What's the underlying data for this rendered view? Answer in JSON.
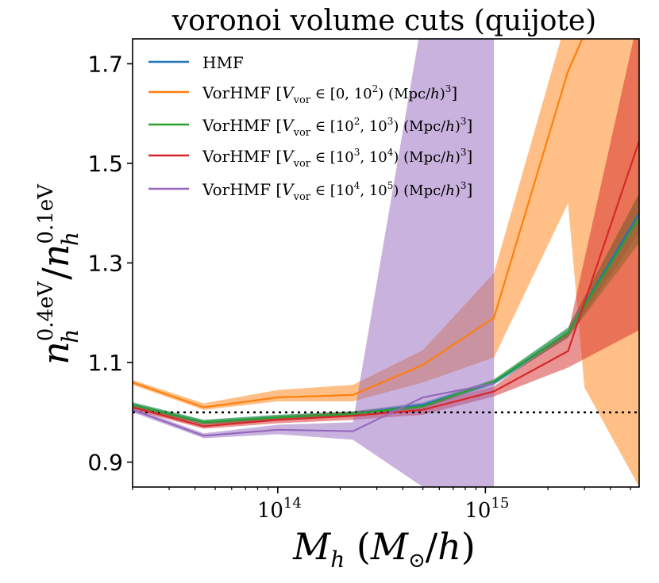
{
  "chart_data": {
    "type": "line",
    "title": "voronoi volume cuts (quijote)",
    "xlabel": "M_h (M_⊙/h)",
    "ylabel": "n_h^0.4eV / n_h^0.1eV",
    "xscale": "log",
    "xlim": [
      20000000000000.0,
      5500000000000000.0
    ],
    "ylim": [
      0.85,
      1.75
    ],
    "yticks": [
      "0.9",
      "1.1",
      "1.3",
      "1.5",
      "1.7"
    ],
    "xticks": [
      {
        "value": 100000000000000.0,
        "base": "10",
        "exp": "14"
      },
      {
        "value": 1000000000000000.0,
        "base": "10",
        "exp": "15"
      }
    ],
    "reference_line": {
      "y": 1.0,
      "style": "dotted",
      "color": "#000000"
    },
    "legend_position": "top-left",
    "series": [
      {
        "name": "HMF",
        "legend_main": "HMF",
        "legend_rest": "",
        "color": "#1f77b4",
        "x": [
          20000000000000.0,
          44000000000000.0,
          100000000000000.0,
          230000000000000.0,
          500000000000000.0,
          1100000000000000.0,
          2500000000000000.0,
          5500000000000000.0
        ],
        "y": [
          1.015,
          0.98,
          0.99,
          0.997,
          1.015,
          1.06,
          1.16,
          1.4
        ],
        "band_lo": [
          1.01,
          0.975,
          0.985,
          0.992,
          1.01,
          1.055,
          1.15,
          1.36
        ],
        "band_hi": [
          1.02,
          0.985,
          0.995,
          1.002,
          1.02,
          1.065,
          1.17,
          1.44
        ]
      },
      {
        "name": "VorHMF [V_vor ∈ [0, 10^2) (Mpc/h)^3]",
        "legend_main": "VorHMF [",
        "legend_rest": "V_vor ∈ [0, 10^2) (Mpc/h)^3]",
        "color": "#ff7f0e",
        "x": [
          20000000000000.0,
          44000000000000.0,
          100000000000000.0,
          230000000000000.0,
          500000000000000.0,
          1100000000000000.0,
          2500000000000000.0,
          3000000000000000.0,
          5500000000000000.0
        ],
        "y": [
          1.06,
          1.01,
          1.03,
          1.035,
          1.095,
          1.19,
          1.685,
          1.76,
          1.8
        ],
        "band_lo": [
          1.055,
          1.005,
          1.022,
          1.022,
          1.06,
          1.11,
          1.42,
          1.05,
          0.85
        ],
        "band_hi": [
          1.065,
          1.018,
          1.045,
          1.055,
          1.125,
          1.28,
          1.8,
          1.8,
          1.8
        ]
      },
      {
        "name": "VorHMF [V_vor ∈ [10^2, 10^3) (Mpc/h)^3]",
        "legend_main": "VorHMF [",
        "legend_rest": "V_vor ∈ [10^2, 10^3) (Mpc/h)^3]",
        "color": "#2ca02c",
        "x": [
          20000000000000.0,
          44000000000000.0,
          100000000000000.0,
          230000000000000.0,
          500000000000000.0,
          1100000000000000.0,
          2500000000000000.0,
          5500000000000000.0
        ],
        "y": [
          1.015,
          0.98,
          0.99,
          0.997,
          1.012,
          1.062,
          1.16,
          1.39
        ],
        "band_lo": [
          1.01,
          0.975,
          0.985,
          0.992,
          1.007,
          1.057,
          1.15,
          1.34
        ],
        "band_hi": [
          1.02,
          0.985,
          0.995,
          1.002,
          1.017,
          1.067,
          1.17,
          1.44
        ]
      },
      {
        "name": "VorHMF [V_vor ∈ [10^3, 10^4) (Mpc/h)^3]",
        "legend_main": "VorHMF [",
        "legend_rest": "V_vor ∈ [10^3, 10^4) (Mpc/h)^3]",
        "color": "#d62728",
        "x": [
          20000000000000.0,
          44000000000000.0,
          100000000000000.0,
          230000000000000.0,
          500000000000000.0,
          1100000000000000.0,
          2500000000000000.0,
          5500000000000000.0
        ],
        "y": [
          1.01,
          0.972,
          0.985,
          0.993,
          1.005,
          1.042,
          1.123,
          1.545
        ],
        "band_lo": [
          1.005,
          0.967,
          0.978,
          0.985,
          0.995,
          1.032,
          1.09,
          1.165
        ],
        "band_hi": [
          1.015,
          0.977,
          0.992,
          1.001,
          1.015,
          1.052,
          1.16,
          1.8
        ]
      },
      {
        "name": "VorHMF [V_vor ∈ [10^4, 10^5) (Mpc/h)^3]",
        "legend_main": "VorHMF [",
        "legend_rest": "V_vor ∈ [10^4, 10^5) (Mpc/h)^3]",
        "color": "#9467bd",
        "x": [
          20000000000000.0,
          44000000000000.0,
          100000000000000.0,
          230000000000000.0,
          500000000000000.0,
          1100000000000000.0
        ],
        "y": [
          1.005,
          0.953,
          0.965,
          0.962,
          1.03,
          1.058
        ],
        "band_lo": [
          1.0,
          0.948,
          0.956,
          0.945,
          0.85,
          0.85
        ],
        "band_hi": [
          1.01,
          0.958,
          0.975,
          0.98,
          1.8,
          1.8
        ]
      }
    ]
  }
}
